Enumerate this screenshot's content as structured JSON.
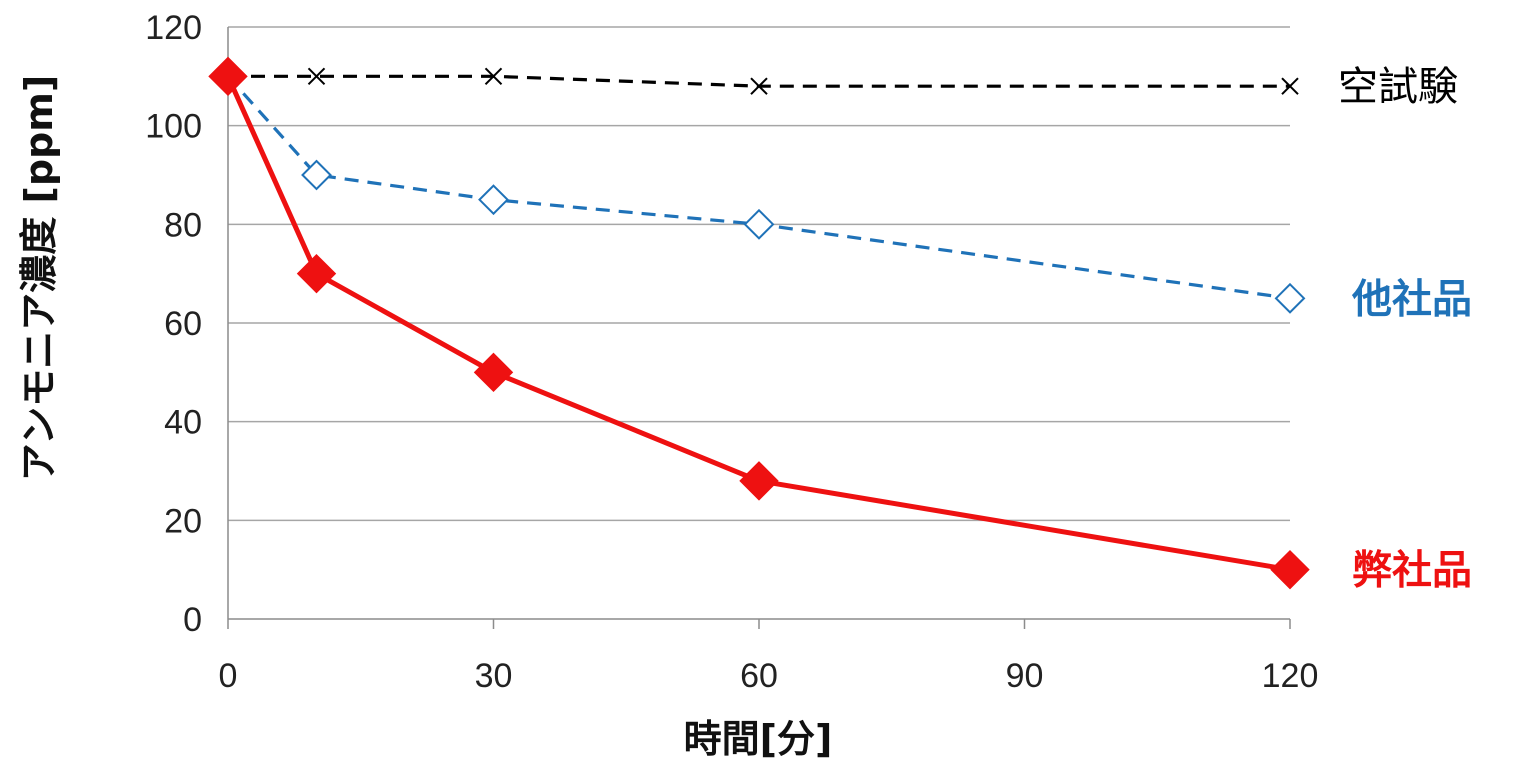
{
  "chart_data": {
    "type": "line",
    "xlabel": "時間[分]",
    "ylabel": "アンモニア濃度 [ppm]",
    "xlim": [
      0,
      120
    ],
    "ylim": [
      0,
      120
    ],
    "xticks": [
      0,
      30,
      60,
      90,
      120
    ],
    "yticks": [
      0,
      20,
      40,
      60,
      80,
      100,
      120
    ],
    "grid": "horizontal",
    "legend": "right-end labels",
    "series": [
      {
        "name": "空試験",
        "color": "#000000",
        "line_style": "dashed",
        "marker": "x",
        "x": [
          0,
          10,
          30,
          60,
          120
        ],
        "y": [
          110,
          110,
          110,
          108,
          108
        ]
      },
      {
        "name": "他社品",
        "color": "#1f72b8",
        "line_style": "dashed",
        "marker": "diamond-open",
        "x": [
          0,
          10,
          30,
          60,
          120
        ],
        "y": [
          110,
          90,
          85,
          80,
          65
        ]
      },
      {
        "name": "弊社品",
        "color": "#ee1111",
        "line_style": "solid",
        "marker": "diamond-filled",
        "x": [
          0,
          10,
          30,
          60,
          120
        ],
        "y": [
          110,
          70,
          50,
          28,
          10
        ]
      }
    ]
  }
}
